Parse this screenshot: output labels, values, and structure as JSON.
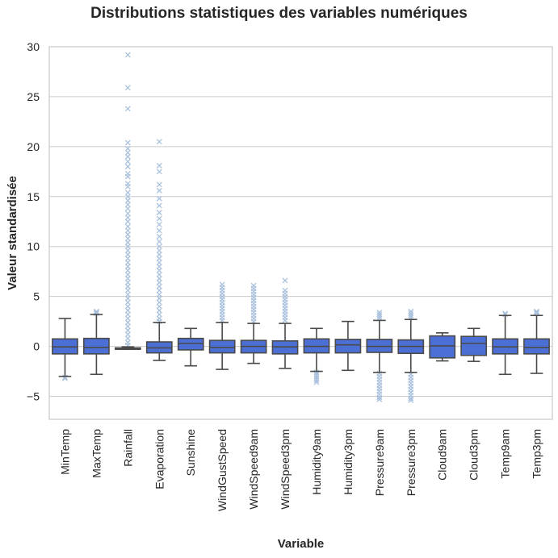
{
  "chart_data": {
    "type": "box",
    "title": "Distributions statistiques des variables numériques",
    "xlabel": "Variable",
    "ylabel": "Valeur standardisée",
    "ylim": [
      -7.3,
      30
    ],
    "yticks": [
      -5,
      0,
      5,
      10,
      15,
      20,
      25,
      30
    ],
    "ytick_labels": [
      "−5",
      "0",
      "5",
      "10",
      "15",
      "20",
      "25",
      "30"
    ],
    "grid": "horizontal",
    "colors": {
      "box": "#4c6fd6",
      "line": "#4a4a4a",
      "flier": "#a9c1dd",
      "grid": "#cccccc",
      "spine": "#cccccc"
    },
    "categories": [
      "MinTemp",
      "MaxTemp",
      "Rainfall",
      "Evaporation",
      "Sunshine",
      "WindGustSpeed",
      "WindSpeed9am",
      "WindSpeed3pm",
      "Humidity9am",
      "Humidity3pm",
      "Pressure9am",
      "Pressure3pm",
      "Cloud9am",
      "Cloud3pm",
      "Temp9am",
      "Temp3pm"
    ],
    "boxes": [
      {
        "q1": -0.75,
        "median": -0.05,
        "q3": 0.75,
        "whislo": -3.0,
        "whishi": 2.8,
        "fliers": [
          -3.1,
          -3.2
        ]
      },
      {
        "q1": -0.75,
        "median": -0.1,
        "q3": 0.8,
        "whislo": -2.8,
        "whishi": 3.2,
        "fliers": [
          3.3,
          3.4,
          3.5
        ]
      },
      {
        "q1": -0.28,
        "median": -0.28,
        "q3": -0.15,
        "whislo": -0.28,
        "whishi": -0.05,
        "fliers": [
          29.2,
          25.9,
          23.8,
          20.4,
          19.8,
          19.4,
          19.0,
          18.5,
          18.0,
          17.3,
          17.0,
          16.3,
          16.0,
          15.4,
          15.0,
          14.6,
          14.2,
          13.8,
          13.3,
          12.9,
          12.5,
          12.0,
          11.6,
          11.2,
          10.8,
          10.4,
          10.0,
          9.6,
          9.2,
          8.8,
          8.4,
          8.0,
          7.6,
          7.2,
          6.8,
          6.4,
          6.0,
          5.6,
          5.2,
          4.8,
          4.4,
          4.0,
          3.6,
          3.2,
          2.8,
          2.4,
          2.0,
          1.6,
          1.2,
          0.8,
          0.4,
          0.1
        ]
      },
      {
        "q1": -0.65,
        "median": -0.15,
        "q3": 0.45,
        "whislo": -1.4,
        "whishi": 2.4,
        "fliers": [
          20.5,
          18.1,
          17.5,
          16.2,
          15.6,
          14.8,
          14.1,
          13.4,
          12.8,
          12.2,
          11.6,
          11.0,
          10.5,
          10.0,
          9.6,
          9.2,
          8.8,
          8.4,
          8.0,
          7.6,
          7.2,
          6.8,
          6.4,
          6.0,
          5.6,
          5.2,
          4.8,
          4.4,
          4.0,
          3.6,
          3.2,
          2.8,
          2.5
        ]
      },
      {
        "q1": -0.35,
        "median": 0.3,
        "q3": 0.8,
        "whislo": -1.95,
        "whishi": 1.8,
        "fliers": []
      },
      {
        "q1": -0.65,
        "median": -0.1,
        "q3": 0.6,
        "whislo": -2.3,
        "whishi": 2.4,
        "fliers": [
          6.2,
          5.9,
          5.6,
          5.3,
          5.0,
          4.7,
          4.4,
          4.1,
          3.8,
          3.5,
          3.2,
          2.9,
          2.6
        ]
      },
      {
        "q1": -0.65,
        "median": 0.0,
        "q3": 0.6,
        "whislo": -1.7,
        "whishi": 2.3,
        "fliers": [
          6.1,
          5.8,
          5.5,
          5.2,
          4.9,
          4.6,
          4.3,
          4.0,
          3.7,
          3.4,
          3.1,
          2.8,
          2.5
        ]
      },
      {
        "q1": -0.75,
        "median": -0.05,
        "q3": 0.55,
        "whislo": -2.2,
        "whishi": 2.3,
        "fliers": [
          6.6,
          5.6,
          5.3,
          5.0,
          4.7,
          4.4,
          4.1,
          3.8,
          3.5,
          3.2,
          2.9,
          2.6
        ]
      },
      {
        "q1": -0.65,
        "median": 0.0,
        "q3": 0.75,
        "whislo": -2.5,
        "whishi": 1.8,
        "fliers": [
          -2.6,
          -2.8,
          -3.0,
          -3.2,
          -3.4,
          -3.6
        ]
      },
      {
        "q1": -0.65,
        "median": 0.15,
        "q3": 0.7,
        "whislo": -2.4,
        "whishi": 2.5,
        "fliers": []
      },
      {
        "q1": -0.6,
        "median": 0.0,
        "q3": 0.7,
        "whislo": -2.6,
        "whishi": 2.6,
        "fliers": [
          3.4,
          3.2,
          3.0,
          2.8,
          -2.7,
          -3.0,
          -3.3,
          -3.6,
          -3.9,
          -4.2,
          -4.5,
          -4.8,
          -5.1,
          -5.3
        ]
      },
      {
        "q1": -0.7,
        "median": 0.0,
        "q3": 0.65,
        "whislo": -2.6,
        "whishi": 2.7,
        "fliers": [
          3.5,
          3.3,
          3.1,
          2.9,
          -2.8,
          -3.1,
          -3.4,
          -3.7,
          -4.0,
          -4.3,
          -4.6,
          -4.9,
          -5.2,
          -5.4
        ]
      },
      {
        "q1": -1.15,
        "median": 0.05,
        "q3": 1.05,
        "whislo": -1.45,
        "whishi": 1.35,
        "fliers": []
      },
      {
        "q1": -0.9,
        "median": 0.3,
        "q3": 1.0,
        "whislo": -1.5,
        "whishi": 1.8,
        "fliers": []
      },
      {
        "q1": -0.75,
        "median": -0.05,
        "q3": 0.75,
        "whislo": -2.8,
        "whishi": 3.1,
        "fliers": [
          3.2,
          3.3
        ]
      },
      {
        "q1": -0.75,
        "median": -0.1,
        "q3": 0.75,
        "whislo": -2.7,
        "whishi": 3.1,
        "fliers": [
          3.3,
          3.4,
          3.5
        ]
      }
    ]
  }
}
